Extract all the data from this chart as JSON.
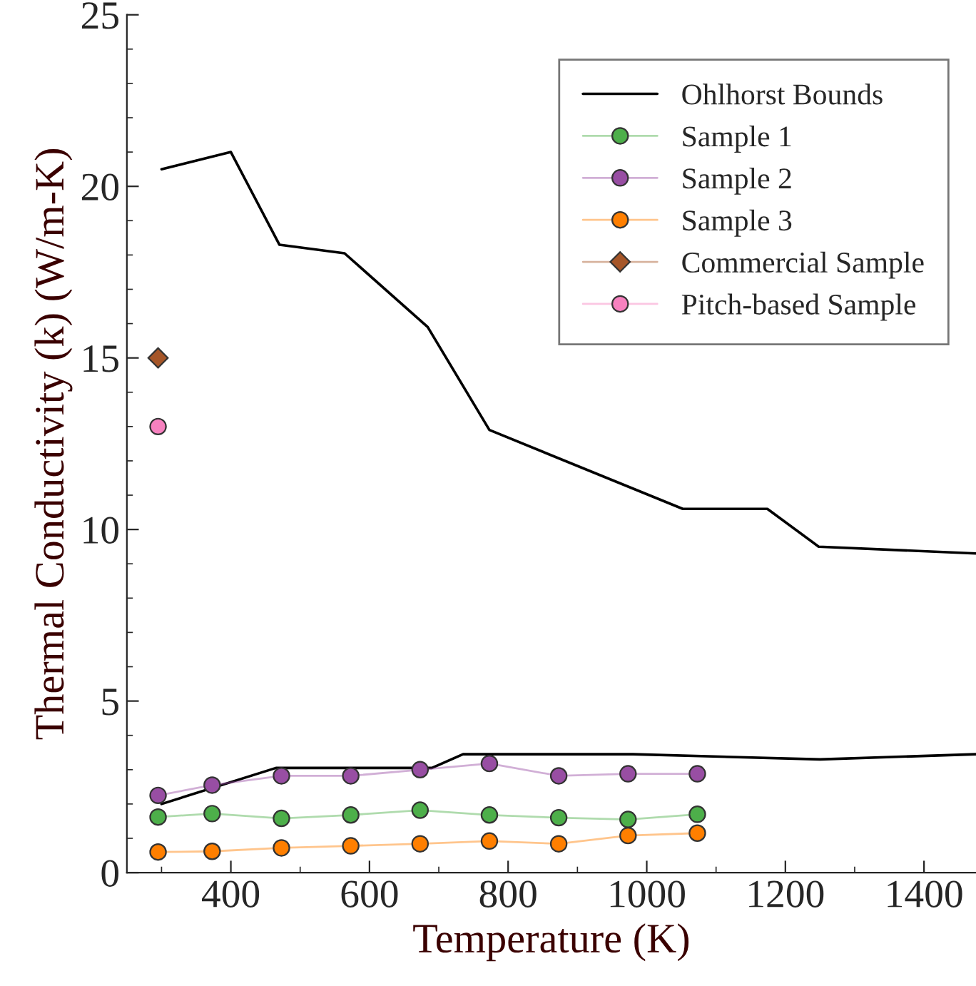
{
  "chart_data": {
    "type": "line",
    "xlabel": "Temperature (K)",
    "ylabel": "Thermal Conductivity (k) (W/m-K)",
    "xlim": [
      250,
      1475
    ],
    "xticks": [
      400,
      600,
      800,
      1000,
      1200,
      1400
    ],
    "ylim": [
      0,
      25
    ],
    "yticks": [
      0,
      5,
      10,
      15,
      20,
      25
    ],
    "grid": false,
    "legend": "top right",
    "series": [
      {
        "name": "Ohlhorst Bounds",
        "color": "#000000",
        "marker": "none",
        "x": [
          300,
          400,
          470,
          564,
          684,
          773,
          1052,
          1174,
          1248,
          1475
        ],
        "values": [
          20.5,
          21.0,
          18.3,
          18.05,
          15.9,
          12.9,
          10.6,
          10.6,
          9.5,
          9.3
        ]
      },
      {
        "color": "#000000",
        "marker": "none",
        "x": [
          300,
          465,
          690,
          735,
          980,
          1250,
          1475
        ],
        "values": [
          2.0,
          3.05,
          3.05,
          3.45,
          3.45,
          3.3,
          3.45
        ]
      },
      {
        "name": "Sample 1",
        "color": "#4daf4a",
        "marker": "circle",
        "x": [
          295,
          373,
          473,
          573,
          673,
          773,
          873,
          973,
          1073
        ],
        "values": [
          1.62,
          1.72,
          1.58,
          1.68,
          1.82,
          1.68,
          1.6,
          1.55,
          1.7
        ]
      },
      {
        "name": "Sample 2",
        "color": "#984ea3",
        "marker": "circle",
        "x": [
          295,
          373,
          473,
          573,
          673,
          773,
          873,
          973,
          1073
        ],
        "values": [
          2.25,
          2.55,
          2.82,
          2.82,
          3.0,
          3.18,
          2.82,
          2.88,
          2.88
        ]
      },
      {
        "name": "Sample 3",
        "color": "#ff7f00",
        "marker": "circle",
        "x": [
          295,
          373,
          473,
          573,
          673,
          773,
          873,
          973,
          1073
        ],
        "values": [
          0.6,
          0.62,
          0.72,
          0.78,
          0.84,
          0.92,
          0.84,
          1.08,
          1.15
        ]
      },
      {
        "name": "Commercial Sample",
        "color": "#a65628",
        "marker": "diamond",
        "x": [
          295
        ],
        "values": [
          15
        ]
      },
      {
        "name": "Pitch-based Sample",
        "color": "#f781bf",
        "marker": "circle",
        "x": [
          295
        ],
        "values": [
          13
        ]
      }
    ]
  }
}
